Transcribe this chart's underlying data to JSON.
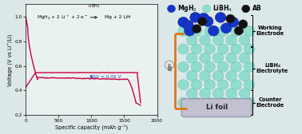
{
  "fig_width": 3.78,
  "fig_height": 1.68,
  "dpi": 100,
  "left_bg": "#eaf2f0",
  "right_bg": "#d8eae8",
  "curve_color": "#cc0044",
  "ylim": [
    0.2,
    1.1
  ],
  "xlim": [
    0,
    2000
  ],
  "yticks": [
    0.2,
    0.4,
    0.6,
    0.8,
    1.0
  ],
  "xticks": [
    0,
    500,
    1000,
    1500,
    2000
  ],
  "xlabel": "Specific capacity (mAh g⁻¹)",
  "ylabel": "Voltage (V vs Li⁺/Li)",
  "annotation": "ΔV = 0.05 V",
  "color_mgh2": "#1535c8",
  "color_libh4": "#90ddd0",
  "color_libh4_edge": "#70c0b0",
  "color_ab": "#111111",
  "label_working": "Working\nElectrode",
  "label_electrolyte": "LiBH₄\nElectrolyte",
  "label_counter": "Counter\nElectrode",
  "label_lifoil": "Li foil",
  "orange_color": "#e07818"
}
